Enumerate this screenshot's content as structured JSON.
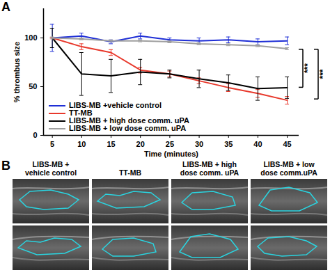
{
  "chart_data": {
    "type": "line",
    "panel_label": "A",
    "x_label": "Time (minutes)",
    "y_label": "% thrombus size",
    "x": [
      5,
      10,
      15,
      20,
      25,
      30,
      35,
      40,
      45
    ],
    "xlim": [
      3.5,
      47
    ],
    "xticks": [
      5,
      10,
      15,
      20,
      25,
      30,
      35,
      40,
      45
    ],
    "ylim": [
      0,
      130
    ],
    "yticks": [
      0,
      50,
      100
    ],
    "legend": "bottom-left",
    "series": [
      {
        "name": "LIBS-MB +vehicle control",
        "color": "#1f2fd6",
        "values": [
          100,
          102,
          96,
          102,
          98,
          97,
          98,
          96,
          97
        ],
        "errors": [
          14,
          3,
          2,
          3,
          2,
          3,
          3,
          3,
          4
        ]
      },
      {
        "name": "TT-MB",
        "color": "#e8392c",
        "values": [
          100,
          91,
          85,
          67,
          63,
          56,
          49,
          43,
          36
        ],
        "errors": [
          0,
          3,
          3,
          3,
          3,
          3,
          4,
          4,
          4
        ]
      },
      {
        "name": "LIBS-MB + high dose comm. uPA",
        "color": "#000000",
        "values": [
          100,
          63,
          61,
          65,
          63,
          58,
          54,
          48,
          49
        ],
        "errors": [
          10,
          22,
          17,
          13,
          4,
          9,
          8,
          12,
          11
        ]
      },
      {
        "name": "LIBS-MB + low dose comm. uPA",
        "color": "#a0a0a0",
        "values": [
          100,
          99,
          97,
          97,
          96,
          94,
          93,
          92,
          89
        ],
        "errors": [
          1,
          1,
          1,
          1,
          1,
          1,
          1,
          1,
          1
        ]
      }
    ],
    "annotations": [
      {
        "text": "***",
        "y1": 88,
        "y2": 49
      },
      {
        "text": "***",
        "y1": 88,
        "y2": 37
      }
    ]
  },
  "panel_b": {
    "panel_label": "B",
    "columns": [
      {
        "title": [
          "LIBS-MB +",
          "vehicle control"
        ]
      },
      {
        "title": [
          "TT-MB"
        ]
      },
      {
        "title": [
          "LIBS-MB + high",
          "dose comm. uPA"
        ]
      },
      {
        "title": [
          "LIBS-MB + low",
          "dose comm.uPA"
        ]
      }
    ]
  }
}
